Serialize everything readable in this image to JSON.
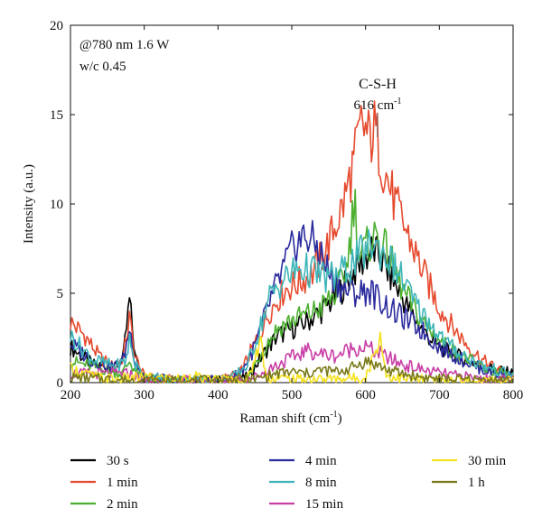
{
  "chart_data": {
    "type": "line",
    "xlabel": "Raman shift (cm",
    "xlabel_sup": "-1",
    "xlabel_end": ")",
    "ylabel": "Intensity (a.u.)",
    "xlim": [
      200,
      800
    ],
    "ylim": [
      0,
      20
    ],
    "xticks": [
      "200",
      "300",
      "400",
      "500",
      "600",
      "700",
      "800"
    ],
    "yticks": [
      "0",
      "5",
      "10",
      "15",
      "20"
    ],
    "annotations": {
      "condition_line1": "@780 nm 1.6 W",
      "condition_line2": "w/c 0.45",
      "peak_label": "C-S-H",
      "peak_position": "616 cm",
      "peak_position_sup": "-1",
      "peak_x": 616
    },
    "legend_position": "bottom",
    "series": [
      {
        "name": "30 s",
        "color": "#000000",
        "points": [
          [
            200,
            2.0
          ],
          [
            230,
            1.0
          ],
          [
            260,
            0.8
          ],
          [
            272,
            1.5
          ],
          [
            280,
            4.6
          ],
          [
            288,
            1.4
          ],
          [
            300,
            0.2
          ],
          [
            350,
            0.1
          ],
          [
            400,
            0.1
          ],
          [
            440,
            0.3
          ],
          [
            460,
            1.5
          ],
          [
            480,
            2.6
          ],
          [
            500,
            3.0
          ],
          [
            520,
            3.4
          ],
          [
            540,
            4.0
          ],
          [
            560,
            4.8
          ],
          [
            580,
            6.0
          ],
          [
            600,
            7.0
          ],
          [
            610,
            7.4
          ],
          [
            620,
            7.0
          ],
          [
            640,
            5.5
          ],
          [
            660,
            4.0
          ],
          [
            680,
            2.8
          ],
          [
            700,
            2.0
          ],
          [
            720,
            1.6
          ],
          [
            740,
            1.2
          ],
          [
            760,
            0.9
          ],
          [
            780,
            0.7
          ],
          [
            800,
            0.5
          ]
        ]
      },
      {
        "name": "1 min",
        "color": "#e64a2e",
        "points": [
          [
            200,
            3.4
          ],
          [
            220,
            2.6
          ],
          [
            240,
            1.4
          ],
          [
            260,
            0.8
          ],
          [
            272,
            1.5
          ],
          [
            280,
            3.6
          ],
          [
            288,
            1.4
          ],
          [
            300,
            0.3
          ],
          [
            350,
            0.1
          ],
          [
            400,
            0.1
          ],
          [
            430,
            0.5
          ],
          [
            450,
            2.2
          ],
          [
            470,
            4.0
          ],
          [
            490,
            5.2
          ],
          [
            510,
            5.6
          ],
          [
            530,
            6.2
          ],
          [
            550,
            7.8
          ],
          [
            570,
            10.0
          ],
          [
            585,
            12.5
          ],
          [
            595,
            14.5
          ],
          [
            605,
            13.6
          ],
          [
            612,
            14.2
          ],
          [
            625,
            12.0
          ],
          [
            640,
            10.0
          ],
          [
            660,
            8.0
          ],
          [
            680,
            6.0
          ],
          [
            700,
            4.2
          ],
          [
            720,
            3.0
          ],
          [
            740,
            2.0
          ],
          [
            760,
            1.2
          ],
          [
            780,
            0.7
          ],
          [
            800,
            0.4
          ]
        ]
      },
      {
        "name": "2 min",
        "color": "#4caf30",
        "points": [
          [
            200,
            1.2
          ],
          [
            240,
            0.8
          ],
          [
            270,
            0.5
          ],
          [
            280,
            1.2
          ],
          [
            290,
            0.5
          ],
          [
            320,
            0.1
          ],
          [
            400,
            0.1
          ],
          [
            440,
            0.2
          ],
          [
            460,
            1.8
          ],
          [
            480,
            3.0
          ],
          [
            500,
            3.5
          ],
          [
            520,
            3.8
          ],
          [
            540,
            4.2
          ],
          [
            560,
            5.0
          ],
          [
            575,
            6.5
          ],
          [
            585,
            10.4
          ],
          [
            592,
            7.0
          ],
          [
            605,
            7.8
          ],
          [
            615,
            8.3
          ],
          [
            630,
            7.2
          ],
          [
            650,
            5.2
          ],
          [
            670,
            3.8
          ],
          [
            690,
            2.8
          ],
          [
            710,
            2.0
          ],
          [
            730,
            1.5
          ],
          [
            760,
            0.8
          ],
          [
            800,
            0.3
          ]
        ]
      },
      {
        "name": "4 min",
        "color": "#2b2b9e",
        "points": [
          [
            200,
            2.2
          ],
          [
            230,
            1.2
          ],
          [
            260,
            0.9
          ],
          [
            272,
            1.3
          ],
          [
            280,
            3.0
          ],
          [
            288,
            1.2
          ],
          [
            300,
            0.3
          ],
          [
            350,
            0.1
          ],
          [
            400,
            0.1
          ],
          [
            430,
            0.5
          ],
          [
            450,
            2.0
          ],
          [
            470,
            4.5
          ],
          [
            490,
            6.5
          ],
          [
            505,
            7.8
          ],
          [
            520,
            8.2
          ],
          [
            535,
            7.6
          ],
          [
            550,
            6.2
          ],
          [
            570,
            5.2
          ],
          [
            590,
            5.0
          ],
          [
            605,
            5.2
          ],
          [
            620,
            4.6
          ],
          [
            640,
            3.9
          ],
          [
            660,
            3.4
          ],
          [
            680,
            2.8
          ],
          [
            700,
            2.0
          ],
          [
            720,
            1.5
          ],
          [
            740,
            1.1
          ],
          [
            760,
            0.7
          ],
          [
            800,
            0.3
          ]
        ]
      },
      {
        "name": "8 min",
        "color": "#3eb5b8",
        "points": [
          [
            200,
            2.6
          ],
          [
            230,
            1.3
          ],
          [
            260,
            0.9
          ],
          [
            275,
            1.2
          ],
          [
            280,
            2.4
          ],
          [
            288,
            1.0
          ],
          [
            300,
            0.3
          ],
          [
            350,
            0.1
          ],
          [
            400,
            0.1
          ],
          [
            420,
            0.3
          ],
          [
            440,
            1.0
          ],
          [
            455,
            2.8
          ],
          [
            470,
            4.8
          ],
          [
            490,
            5.8
          ],
          [
            510,
            6.4
          ],
          [
            530,
            6.2
          ],
          [
            550,
            5.8
          ],
          [
            570,
            6.2
          ],
          [
            590,
            7.0
          ],
          [
            610,
            7.8
          ],
          [
            630,
            7.0
          ],
          [
            650,
            5.8
          ],
          [
            670,
            4.2
          ],
          [
            690,
            3.2
          ],
          [
            710,
            2.2
          ],
          [
            730,
            1.6
          ],
          [
            760,
            0.9
          ],
          [
            800,
            0.4
          ]
        ]
      },
      {
        "name": "15 min",
        "color": "#c83fa6",
        "points": [
          [
            200,
            0.5
          ],
          [
            280,
            0.5
          ],
          [
            300,
            0.1
          ],
          [
            400,
            0.1
          ],
          [
            450,
            0.3
          ],
          [
            480,
            1.0
          ],
          [
            500,
            1.4
          ],
          [
            520,
            1.8
          ],
          [
            540,
            1.6
          ],
          [
            560,
            1.5
          ],
          [
            580,
            1.9
          ],
          [
            600,
            2.0
          ],
          [
            620,
            1.6
          ],
          [
            640,
            1.2
          ],
          [
            660,
            0.9
          ],
          [
            690,
            0.6
          ],
          [
            720,
            0.4
          ],
          [
            760,
            0.2
          ],
          [
            800,
            0.1
          ]
        ]
      },
      {
        "name": "30 min",
        "color": "#f5e21f",
        "points": [
          [
            200,
            0.8
          ],
          [
            220,
            0.5
          ],
          [
            240,
            0.3
          ],
          [
            260,
            0.2
          ],
          [
            300,
            0.3
          ],
          [
            350,
            0.2
          ],
          [
            370,
            0.4
          ],
          [
            380,
            0.1
          ],
          [
            400,
            0.2
          ],
          [
            440,
            0.1
          ],
          [
            458,
            2.4
          ],
          [
            465,
            0.3
          ],
          [
            500,
            0.2
          ],
          [
            560,
            0.2
          ],
          [
            600,
            0.3
          ],
          [
            612,
            1.6
          ],
          [
            620,
            2.6
          ],
          [
            628,
            0.4
          ],
          [
            650,
            0.2
          ],
          [
            700,
            0.1
          ],
          [
            800,
            0.1
          ]
        ]
      },
      {
        "name": "1 h",
        "color": "#7a7a1a",
        "points": [
          [
            200,
            0.3
          ],
          [
            300,
            0.1
          ],
          [
            400,
            0.1
          ],
          [
            450,
            0.2
          ],
          [
            480,
            0.5
          ],
          [
            500,
            0.6
          ],
          [
            520,
            0.5
          ],
          [
            540,
            0.7
          ],
          [
            560,
            0.6
          ],
          [
            580,
            0.8
          ],
          [
            600,
            1.2
          ],
          [
            615,
            1.0
          ],
          [
            630,
            0.7
          ],
          [
            660,
            0.4
          ],
          [
            700,
            0.2
          ],
          [
            800,
            0.1
          ]
        ]
      }
    ]
  }
}
